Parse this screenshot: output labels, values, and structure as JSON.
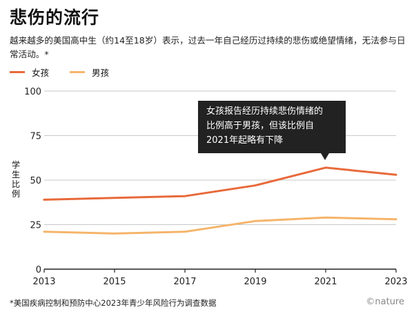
{
  "chart_data": {
    "type": "line",
    "title": "悲伤的流行",
    "subtitle": "越来越多的美国高中生（约14至18岁）表示，过去一年自己经历过持续的悲伤或绝望情绪，无法参与日常活动。*",
    "ylabel": "学生比例",
    "xlabel": "",
    "x": [
      2013,
      2015,
      2017,
      2019,
      2021,
      2023
    ],
    "xtick_labels": [
      "2013",
      "2015",
      "2017",
      "2019",
      "2021",
      "2023"
    ],
    "ylim": [
      0,
      100
    ],
    "yticks": [
      0,
      25,
      50,
      75,
      100
    ],
    "ytick_labels": [
      "0",
      "25",
      "50",
      "75",
      "100"
    ],
    "grid": "horizontal",
    "legend_position": "top-left",
    "series": [
      {
        "name": "女孩",
        "color": "#e8693a",
        "values": [
          39,
          40,
          41,
          47,
          57,
          53
        ]
      },
      {
        "name": "男孩",
        "color": "#f5b46a",
        "values": [
          21,
          20,
          21,
          27,
          29,
          28
        ]
      }
    ],
    "annotation": {
      "text": "女孩报告经历持续悲伤情绪的\n比例高于男孩，但该比例自\n2021年起略有下降",
      "target_x": 2021
    }
  },
  "footnote": "*美国疾病控制和预防中心2023年青少年风险行为调查数据",
  "brand": "©nature",
  "colors": {
    "grid": "#c8c8c8",
    "axis": "#222222",
    "callout_bg": "#222222"
  }
}
